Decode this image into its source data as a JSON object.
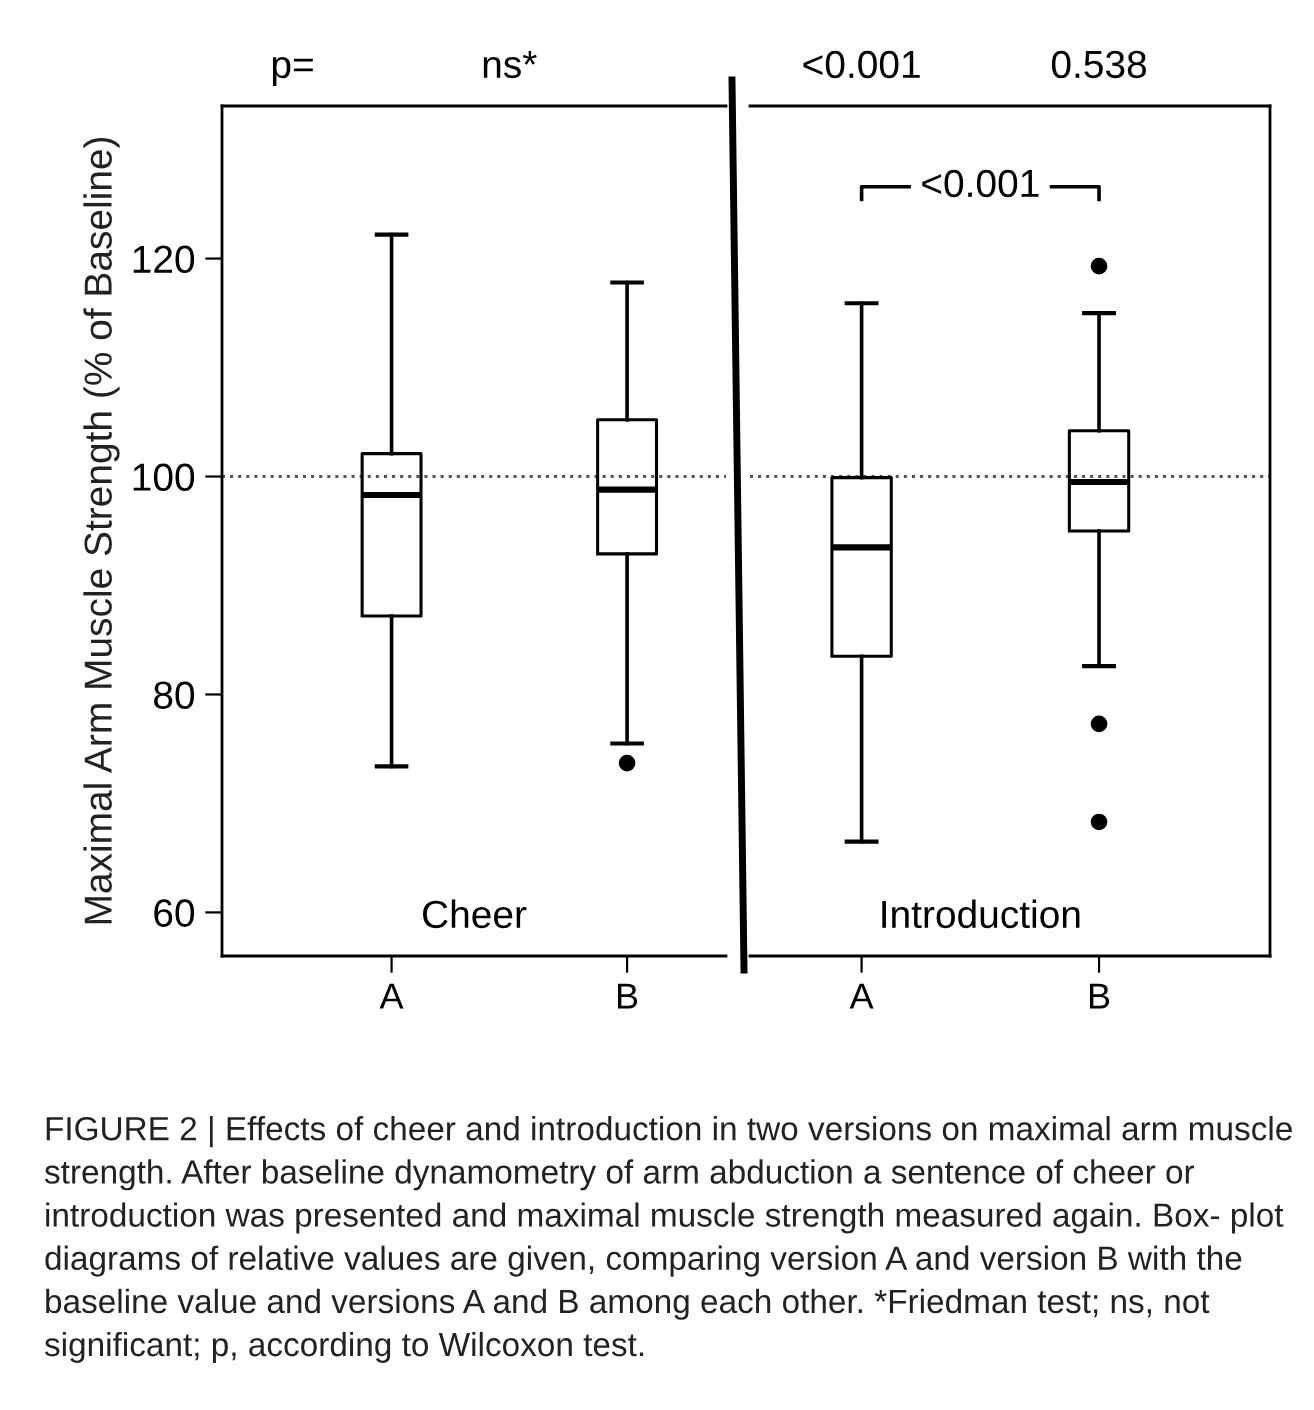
{
  "chart_data": [
    {
      "type": "box",
      "categories": [
        "A",
        "B"
      ],
      "ylabel": "Maximal Arm Muscle Strength (% of Baseline)",
      "ylim": [
        56,
        134
      ],
      "yticks": [
        60,
        80,
        100,
        120
      ],
      "grid": false,
      "boxes": [
        {
          "low": 73.4,
          "q1": 87.2,
          "median": 98.3,
          "q3": 102.1,
          "high": 122.2
        },
        {
          "low": 75.5,
          "q1": 92.9,
          "median": 98.8,
          "q3": 105.2,
          "high": 117.8,
          "outliers": [
            73.7
          ]
        }
      ],
      "ref_lines": [
        {
          "axis": "y",
          "value": 100,
          "line_style": "dotted",
          "color": "#555555"
        }
      ],
      "annotations": [
        "p=",
        "ns*",
        "Cheer"
      ]
    },
    {
      "type": "box",
      "categories": [
        "A",
        "B"
      ],
      "ylim": [
        56,
        134
      ],
      "tick_labels": "x",
      "grid": false,
      "boxes": [
        {
          "low": 66.5,
          "q1": 83.5,
          "median": 93.5,
          "q3": 99.9,
          "high": 115.9
        },
        {
          "low": 82.6,
          "q1": 95.0,
          "median": 99.5,
          "q3": 104.2,
          "high": 115.0,
          "outliers": [
            119.3,
            77.3,
            68.3
          ]
        }
      ],
      "ref_lines": [
        {
          "axis": "y",
          "value": 100,
          "line_style": "dotted",
          "color": "#555555"
        }
      ],
      "annotations": [
        "<0.001",
        "0.538",
        "<0.001",
        "Introduction",
        "FIGURE 2 | Effects of cheer and introduction in two versions on maximal arm muscle strength. After baseline dynamometry of arm abduction a sentence of cheer or introduction was presented and maximal muscle strength measured again. Box- plot diagrams of relative values are given, comparing version A and version B with the baseline value and versions A and B among each other. *Friedman test; ns, not significant; p, according to Wilcoxon test."
      ]
    }
  ]
}
